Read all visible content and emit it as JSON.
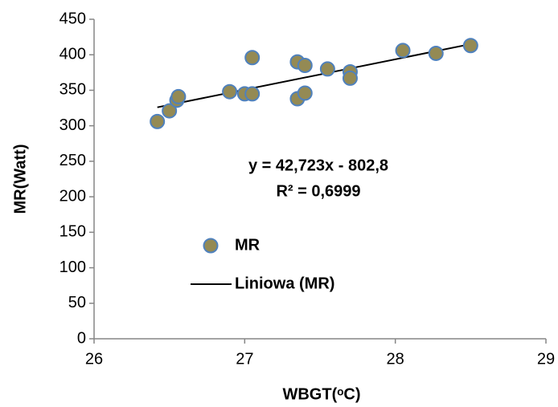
{
  "chart_data": {
    "type": "scatter",
    "x_label": "WBGT(ᵒC)",
    "y_label": "MR(Watt)",
    "series": [
      {
        "name": "MR",
        "color": "#948a54",
        "edge_color": "#4f81bd",
        "x": [
          26.42,
          26.5,
          26.55,
          26.56,
          26.9,
          27.0,
          27.05,
          27.05,
          27.35,
          27.35,
          27.4,
          27.4,
          27.55,
          27.7,
          27.7,
          28.05,
          28.27,
          28.5
        ],
        "values": [
          306,
          321,
          336,
          341,
          348,
          345,
          345,
          396,
          390,
          338,
          385,
          346,
          380,
          376,
          367,
          406,
          402,
          413
        ]
      }
    ],
    "trendline": {
      "name": "Liniowa (MR)",
      "color": "#000000",
      "x": [
        26.42,
        28.5
      ],
      "values": [
        326,
        415
      ]
    },
    "annotations": [
      "y = 42,723x - 802,8",
      "R² = 0,6999"
    ],
    "xlim": [
      26,
      29
    ],
    "xticks": [
      26,
      27,
      28,
      29
    ],
    "ylim": [
      0,
      450
    ],
    "yticks": [
      0,
      50,
      100,
      150,
      200,
      250,
      300,
      350,
      400,
      450
    ],
    "grid": false
  }
}
